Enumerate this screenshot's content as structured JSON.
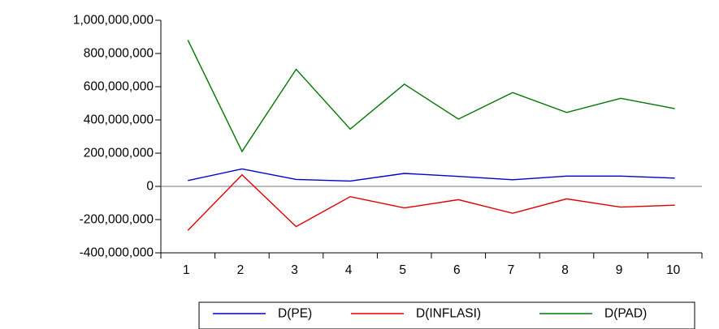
{
  "chart_data": {
    "type": "line",
    "categories": [
      "1",
      "2",
      "3",
      "4",
      "5",
      "6",
      "7",
      "8",
      "9",
      "10"
    ],
    "ylim": [
      -400000000,
      1000000000
    ],
    "yticks": [
      -400000000,
      -200000000,
      0,
      200000000,
      400000000,
      600000000,
      800000000,
      1000000000
    ],
    "ytick_labels": [
      "-400,000,000",
      "-200,000,000",
      "0",
      "200,000,000",
      "400,000,000",
      "600,000,000",
      "800,000,000",
      "1,000,000,000"
    ],
    "zero_line": true,
    "grid": false,
    "legend_position": "bottom",
    "series": [
      {
        "name": "D(PE)",
        "color": "#0000cc",
        "values": [
          35000000,
          105000000,
          42000000,
          32000000,
          78000000,
          60000000,
          40000000,
          62000000,
          62000000,
          50000000
        ]
      },
      {
        "name": "D(INFLASI)",
        "color": "#dd0000",
        "values": [
          -265000000,
          70000000,
          -242000000,
          -62000000,
          -130000000,
          -80000000,
          -162000000,
          -75000000,
          -125000000,
          -113000000
        ]
      },
      {
        "name": "D(PAD)",
        "color": "#007700",
        "values": [
          880000000,
          210000000,
          705000000,
          345000000,
          615000000,
          405000000,
          565000000,
          445000000,
          530000000,
          468000000
        ]
      }
    ]
  }
}
